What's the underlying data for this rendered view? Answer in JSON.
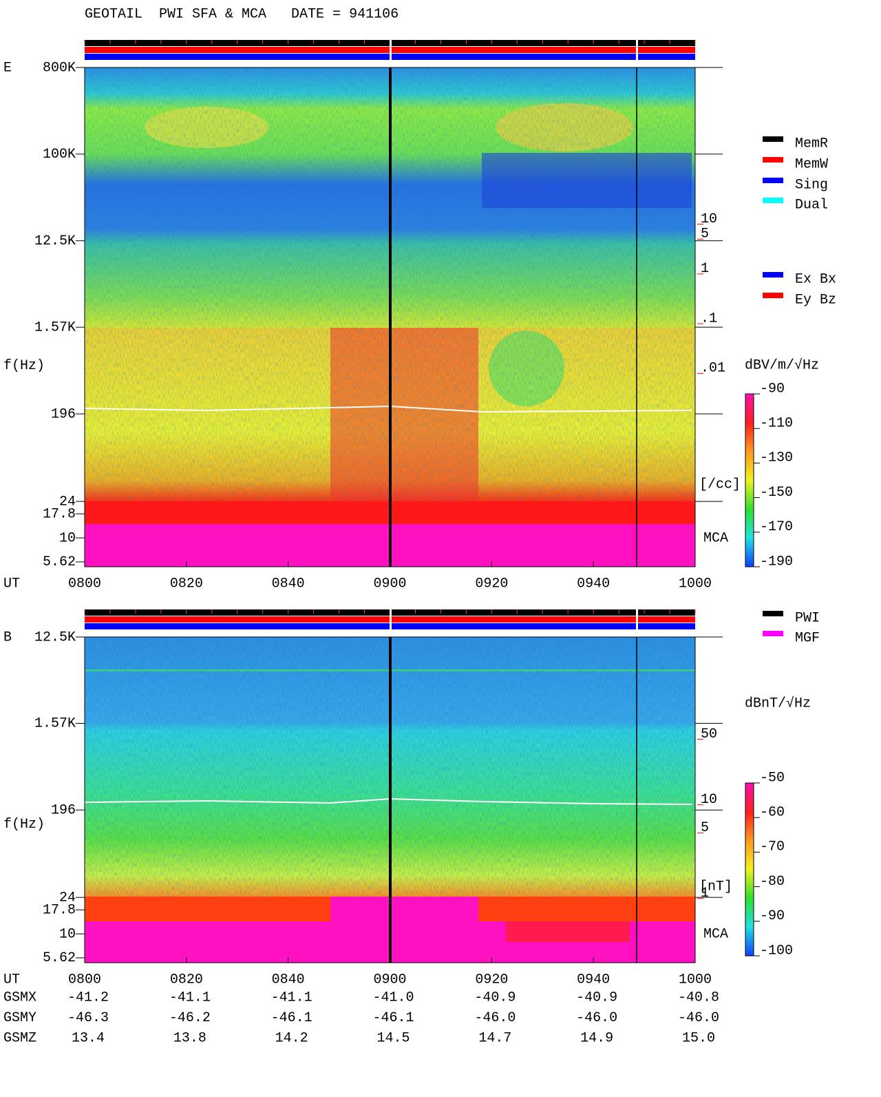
{
  "header": {
    "title": "GEOTAIL  PWI SFA & MCA   DATE = 941106"
  },
  "chart_data": [
    {
      "type": "spectrogram",
      "panel_label": "E",
      "ylabel": "f(Hz)",
      "xlabel": "UT",
      "yscale": "log",
      "xlim": [
        480,
        600
      ],
      "xticks": [
        {
          "value": 480,
          "label": "0800"
        },
        {
          "value": 500,
          "label": "0820"
        },
        {
          "value": 520,
          "label": "0840"
        },
        {
          "value": 540,
          "label": "0900"
        },
        {
          "value": 560,
          "label": "0920"
        },
        {
          "value": 580,
          "label": "0940"
        },
        {
          "value": 600,
          "label": "1000"
        }
      ],
      "ylim": [
        5,
        800000
      ],
      "yticks": [
        {
          "value": 800000,
          "label": "800K"
        },
        {
          "value": 100000,
          "label": "100K"
        },
        {
          "value": 12500,
          "label": "12.5K"
        },
        {
          "value": 1570,
          "label": "1.57K"
        },
        196,
        24,
        17.8,
        10,
        5.62
      ],
      "y2scale": "log",
      "y2lim": [
        1e-06,
        11000
      ],
      "y2ticks": [
        10,
        5,
        1,
        {
          "value": 0.1,
          "label": ".1"
        },
        {
          "value": 0.01,
          "label": ".01"
        }
      ],
      "y2label": "[/cc]",
      "region_label": "MCA",
      "legend": [
        {
          "name": "MemR",
          "color": "#000000"
        },
        {
          "name": "MemW",
          "color": "#ff0000"
        },
        {
          "name": "Sing",
          "color": "#0000ff"
        },
        {
          "name": "Dual",
          "color": "#00ffff"
        }
      ],
      "legend2": [
        {
          "name": "Ex Bx",
          "color": "#0000ff"
        },
        {
          "name": "Ey Bz",
          "color": "#ff0000"
        }
      ],
      "colorbar": {
        "label": "dBV/m/√Hz",
        "lim": [
          -190,
          -90
        ],
        "ticks": [
          -90,
          -110,
          -130,
          -150,
          -170,
          -190
        ],
        "colors": [
          "#ff10b0",
          "#ff2020",
          "#ff9a20",
          "#f0f020",
          "#30e030",
          "#20e0e0",
          "#1040ff"
        ]
      }
    },
    {
      "type": "spectrogram",
      "panel_label": "B",
      "ylabel": "f(Hz)",
      "xlabel": "UT",
      "yscale": "log",
      "xlim": [
        480,
        600
      ],
      "xticks": [
        {
          "value": 480,
          "label": "0800"
        },
        {
          "value": 500,
          "label": "0820"
        },
        {
          "value": 520,
          "label": "0840"
        },
        {
          "value": 540,
          "label": "0900"
        },
        {
          "value": 560,
          "label": "0920"
        },
        {
          "value": 580,
          "label": "0940"
        },
        {
          "value": 600,
          "label": "1000"
        }
      ],
      "ylim": [
        5,
        12500
      ],
      "yticks": [
        {
          "value": 12500,
          "label": "12.5K"
        },
        {
          "value": 1570,
          "label": "1.57K"
        },
        196,
        24,
        17.8,
        10,
        5.62
      ],
      "y2scale": "log",
      "y2lim": [
        0.18,
        540
      ],
      "y2ticks": [
        50,
        10,
        5,
        1
      ],
      "y2label": "[nT]",
      "region_label": "MCA",
      "legend": [
        {
          "name": "PWI",
          "color": "#000000"
        },
        {
          "name": "MGF",
          "color": "#ff00ff"
        }
      ],
      "colorbar": {
        "label": "dBnT/√Hz",
        "lim": [
          -100,
          -50
        ],
        "ticks": [
          -50,
          -60,
          -70,
          -80,
          -90,
          -100
        ],
        "colors": [
          "#ff10b0",
          "#ff2020",
          "#ff9a20",
          "#f0f020",
          "#30e030",
          "#20e0e0",
          "#1040ff"
        ]
      }
    }
  ],
  "orbit": {
    "rows": [
      {
        "label": "GSMX",
        "cells": [
          "-41.2",
          "-41.1",
          "-41.1",
          "-41.0",
          "-40.9",
          "-40.9",
          "-40.8"
        ]
      },
      {
        "label": "GSMY",
        "cells": [
          "-46.3",
          "-46.2",
          "-46.1",
          "-46.1",
          "-46.0",
          "-46.0",
          "-46.0"
        ]
      },
      {
        "label": "GSMZ",
        "cells": [
          "13.4",
          "13.8",
          "14.2",
          "14.5",
          "14.7",
          "14.9",
          "15.0"
        ]
      }
    ]
  }
}
